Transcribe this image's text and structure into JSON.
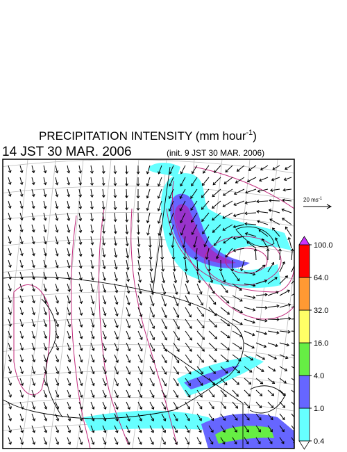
{
  "header": {
    "title": {
      "text": "PRECIPITATION INTENSITY (mm hour",
      "superscript": "-1",
      "close": ")"
    },
    "valid_time": "14 JST 30 MAR. 2006",
    "init_time": "(init. 9 JST 30 MAR. 2006)"
  },
  "wind_scale": {
    "text": "20 ms",
    "superscript": "-1"
  },
  "colorbar": {
    "colors": [
      "#ffffff",
      "#66ffff",
      "#6666ff",
      "#66ee44",
      "#ffff66",
      "#ff9933",
      "#ff0000",
      "#cc33ff"
    ],
    "ticks": [
      0.4,
      {
        "value": 1,
        "label": "1.0"
      },
      {
        "value": 4,
        "label": "4.0"
      },
      {
        "value": 16,
        "label": "16.0"
      },
      {
        "value": 32,
        "label": "32.0"
      },
      {
        "value": 64,
        "label": "64.0"
      },
      {
        "value": 100,
        "label": "100.0"
      }
    ]
  }
}
